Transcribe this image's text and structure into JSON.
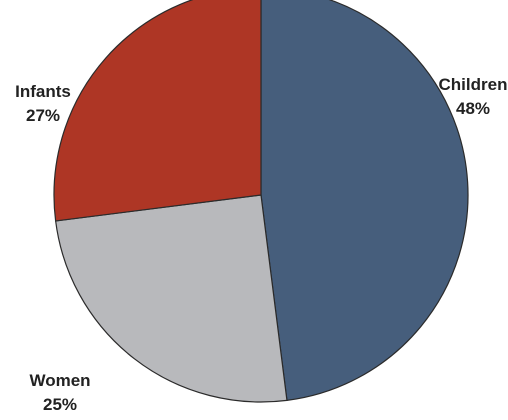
{
  "chart_data": {
    "type": "pie",
    "title": "",
    "categories": [
      "Children",
      "Women",
      "Infants"
    ],
    "values": [
      48,
      25,
      27
    ],
    "value_labels": [
      "48%",
      "25%",
      "27%"
    ],
    "colors": [
      "#465e7c",
      "#b8b9bc",
      "#ae3625"
    ],
    "start": "12 o'clock",
    "direction": "clockwise",
    "legend": "none"
  }
}
